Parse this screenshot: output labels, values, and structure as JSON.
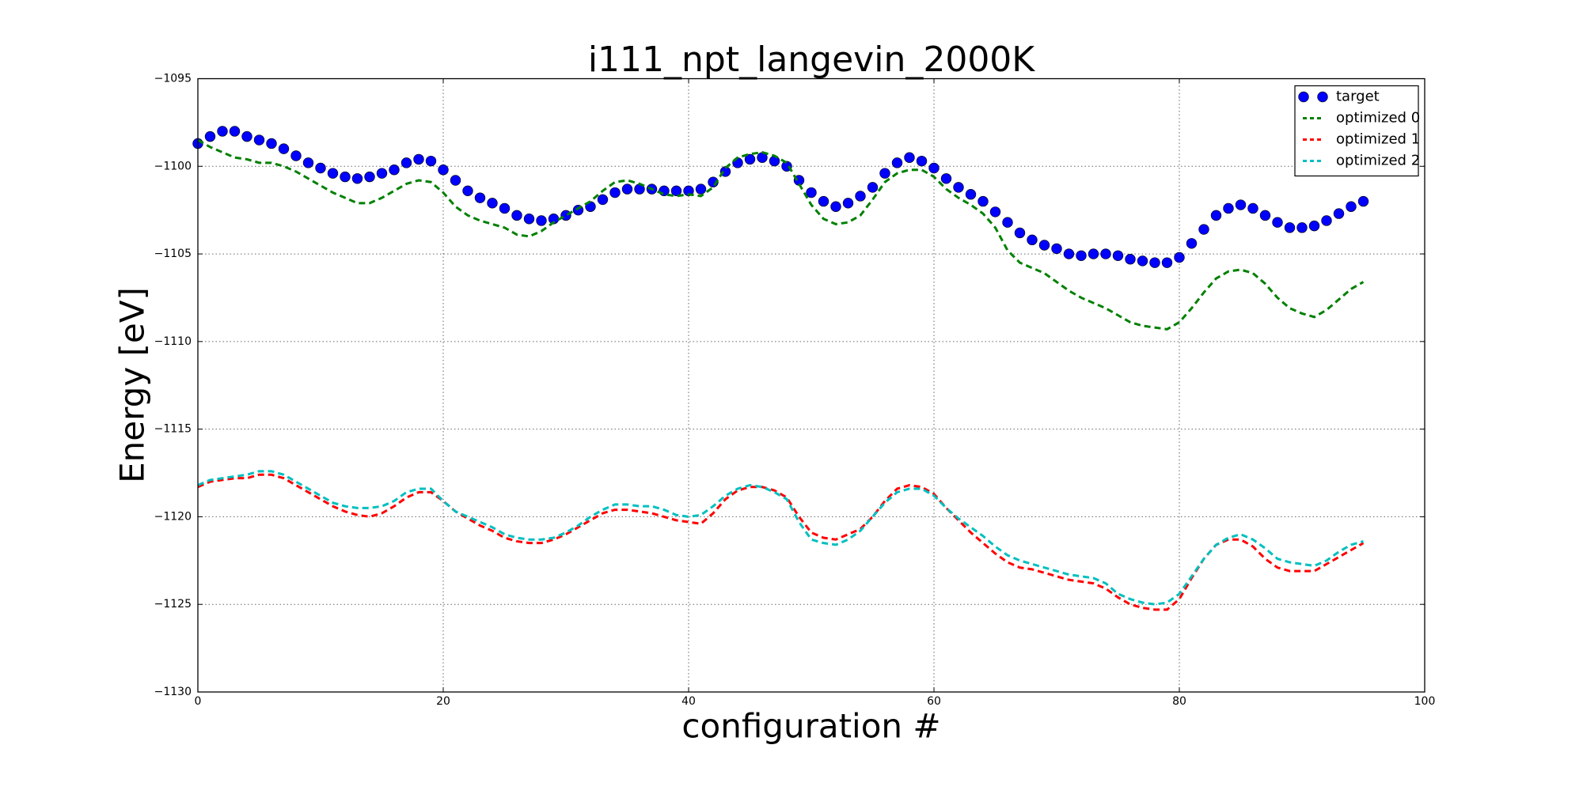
{
  "chart_data": {
    "type": "line",
    "title": "i111_npt_langevin_2000K",
    "xlabel": "configuration #",
    "ylabel": "Energy [eV]",
    "x": [
      0,
      1,
      2,
      3,
      4,
      5,
      6,
      7,
      8,
      9,
      10,
      11,
      12,
      13,
      14,
      15,
      16,
      17,
      18,
      19,
      20,
      21,
      22,
      23,
      24,
      25,
      26,
      27,
      28,
      29,
      30,
      31,
      32,
      33,
      34,
      35,
      36,
      37,
      38,
      39,
      40,
      41,
      42,
      43,
      44,
      45,
      46,
      47,
      48,
      49,
      50,
      51,
      52,
      53,
      54,
      55,
      56,
      57,
      58,
      59,
      60,
      61,
      62,
      63,
      64,
      65,
      66,
      67,
      68,
      69,
      70,
      71,
      72,
      73,
      74,
      75,
      76,
      77,
      78,
      79,
      80,
      81,
      82,
      83,
      84,
      85,
      86,
      87,
      88,
      89,
      90,
      91,
      92,
      93,
      94,
      95
    ],
    "xlim": [
      0,
      100
    ],
    "xticks": [
      0,
      20,
      40,
      60,
      80,
      100
    ],
    "ylim": [
      -1130,
      -1095
    ],
    "yticks": [
      {
        "value": -1095,
        "label": "−1095"
      },
      {
        "value": -1100,
        "label": "−1100"
      },
      {
        "value": -1105,
        "label": "−1105"
      },
      {
        "value": -1110,
        "label": "−1110"
      },
      {
        "value": -1115,
        "label": "−1115"
      },
      {
        "value": -1120,
        "label": "−1120"
      },
      {
        "value": -1125,
        "label": "−1125"
      },
      {
        "value": -1130,
        "label": "−1130"
      }
    ],
    "grid": true,
    "legend": "upper right",
    "series": [
      {
        "name": "target",
        "color": "#0000ff",
        "marker": "o",
        "linestyle": "none",
        "values": [
          -1098.7,
          -1098.3,
          -1098.0,
          -1098.0,
          -1098.3,
          -1098.5,
          -1098.7,
          -1099.0,
          -1099.4,
          -1099.8,
          -1100.1,
          -1100.4,
          -1100.6,
          -1100.7,
          -1100.6,
          -1100.4,
          -1100.2,
          -1099.8,
          -1099.6,
          -1099.7,
          -1100.2,
          -1100.8,
          -1101.4,
          -1101.8,
          -1102.1,
          -1102.4,
          -1102.8,
          -1103.0,
          -1103.1,
          -1103.0,
          -1102.8,
          -1102.5,
          -1102.3,
          -1101.9,
          -1101.5,
          -1101.3,
          -1101.3,
          -1101.3,
          -1101.4,
          -1101.4,
          -1101.4,
          -1101.3,
          -1100.9,
          -1100.3,
          -1099.8,
          -1099.6,
          -1099.5,
          -1099.7,
          -1100.0,
          -1100.8,
          -1101.5,
          -1102.0,
          -1102.3,
          -1102.1,
          -1101.7,
          -1101.2,
          -1100.4,
          -1099.8,
          -1099.5,
          -1099.7,
          -1100.1,
          -1100.7,
          -1101.2,
          -1101.6,
          -1102.0,
          -1102.6,
          -1103.2,
          -1103.8,
          -1104.2,
          -1104.5,
          -1104.7,
          -1105.0,
          -1105.1,
          -1105.0,
          -1105.0,
          -1105.1,
          -1105.3,
          -1105.4,
          -1105.5,
          -1105.5,
          -1105.2,
          -1104.4,
          -1103.6,
          -1102.8,
          -1102.4,
          -1102.2,
          -1102.4,
          -1102.8,
          -1103.2,
          -1103.5,
          -1103.5,
          -1103.4,
          -1103.1,
          -1102.7,
          -1102.3,
          -1102.0
        ]
      },
      {
        "name": "optimized 0",
        "color": "#008000",
        "marker": "none",
        "linestyle": "dashed",
        "values": [
          -1098.5,
          -1098.9,
          -1099.2,
          -1099.5,
          -1099.6,
          -1099.8,
          -1099.8,
          -1100.0,
          -1100.3,
          -1100.7,
          -1101.1,
          -1101.5,
          -1101.8,
          -1102.1,
          -1102.1,
          -1101.8,
          -1101.4,
          -1101.0,
          -1100.8,
          -1100.9,
          -1101.5,
          -1102.3,
          -1102.8,
          -1103.1,
          -1103.3,
          -1103.5,
          -1103.9,
          -1104.0,
          -1103.7,
          -1103.2,
          -1102.8,
          -1102.4,
          -1102.0,
          -1101.4,
          -1100.9,
          -1100.8,
          -1101.0,
          -1101.3,
          -1101.6,
          -1101.7,
          -1101.6,
          -1101.7,
          -1101.2,
          -1100.1,
          -1099.5,
          -1099.3,
          -1099.2,
          -1099.4,
          -1099.8,
          -1101.0,
          -1102.2,
          -1103.0,
          -1103.3,
          -1103.2,
          -1102.8,
          -1101.9,
          -1100.9,
          -1100.4,
          -1100.2,
          -1100.2,
          -1100.6,
          -1101.3,
          -1101.8,
          -1102.2,
          -1102.7,
          -1103.5,
          -1104.8,
          -1105.5,
          -1105.8,
          -1106.1,
          -1106.6,
          -1107.1,
          -1107.5,
          -1107.8,
          -1108.1,
          -1108.5,
          -1108.9,
          -1109.1,
          -1109.2,
          -1109.3,
          -1108.9,
          -1108.1,
          -1107.2,
          -1106.4,
          -1106.0,
          -1105.9,
          -1106.1,
          -1106.7,
          -1107.5,
          -1108.1,
          -1108.4,
          -1108.6,
          -1108.2,
          -1107.6,
          -1107.0,
          -1106.6
        ]
      },
      {
        "name": "optimized 1",
        "color": "#ff0000",
        "marker": "none",
        "linestyle": "dashed",
        "values": [
          -1118.3,
          -1118.0,
          -1117.9,
          -1117.8,
          -1117.8,
          -1117.6,
          -1117.6,
          -1117.8,
          -1118.2,
          -1118.6,
          -1119.0,
          -1119.4,
          -1119.7,
          -1119.9,
          -1120.0,
          -1119.8,
          -1119.4,
          -1118.9,
          -1118.6,
          -1118.6,
          -1119.1,
          -1119.7,
          -1120.1,
          -1120.5,
          -1120.8,
          -1121.2,
          -1121.4,
          -1121.5,
          -1121.5,
          -1121.3,
          -1121.0,
          -1120.6,
          -1120.2,
          -1119.8,
          -1119.6,
          -1119.6,
          -1119.7,
          -1119.8,
          -1120.0,
          -1120.2,
          -1120.3,
          -1120.4,
          -1119.8,
          -1119.0,
          -1118.5,
          -1118.3,
          -1118.3,
          -1118.5,
          -1118.9,
          -1120.0,
          -1120.9,
          -1121.2,
          -1121.3,
          -1121.0,
          -1120.7,
          -1120.0,
          -1119.1,
          -1118.4,
          -1118.2,
          -1118.3,
          -1118.7,
          -1119.5,
          -1120.2,
          -1120.9,
          -1121.5,
          -1122.1,
          -1122.6,
          -1122.9,
          -1123.0,
          -1123.2,
          -1123.4,
          -1123.6,
          -1123.7,
          -1123.8,
          -1124.1,
          -1124.6,
          -1125.0,
          -1125.2,
          -1125.3,
          -1125.3,
          -1124.7,
          -1123.5,
          -1122.4,
          -1121.6,
          -1121.3,
          -1121.3,
          -1121.7,
          -1122.4,
          -1122.9,
          -1123.1,
          -1123.1,
          -1123.1,
          -1122.7,
          -1122.3,
          -1121.9,
          -1121.5
        ]
      },
      {
        "name": "optimized 2",
        "color": "#00bfbf",
        "marker": "none",
        "linestyle": "dashed",
        "values": [
          -1118.2,
          -1117.9,
          -1117.8,
          -1117.7,
          -1117.6,
          -1117.4,
          -1117.4,
          -1117.6,
          -1118.0,
          -1118.4,
          -1118.8,
          -1119.2,
          -1119.4,
          -1119.5,
          -1119.5,
          -1119.4,
          -1119.1,
          -1118.6,
          -1118.4,
          -1118.4,
          -1119.1,
          -1119.7,
          -1120.0,
          -1120.3,
          -1120.6,
          -1121.0,
          -1121.2,
          -1121.3,
          -1121.3,
          -1121.2,
          -1120.9,
          -1120.5,
          -1120.0,
          -1119.6,
          -1119.3,
          -1119.3,
          -1119.4,
          -1119.4,
          -1119.6,
          -1119.9,
          -1120.0,
          -1119.9,
          -1119.4,
          -1118.8,
          -1118.4,
          -1118.2,
          -1118.3,
          -1118.6,
          -1119.0,
          -1120.3,
          -1121.3,
          -1121.5,
          -1121.6,
          -1121.3,
          -1120.8,
          -1120.0,
          -1119.2,
          -1118.6,
          -1118.4,
          -1118.4,
          -1118.8,
          -1119.5,
          -1120.1,
          -1120.6,
          -1121.1,
          -1121.7,
          -1122.2,
          -1122.5,
          -1122.7,
          -1122.9,
          -1123.1,
          -1123.3,
          -1123.4,
          -1123.5,
          -1123.8,
          -1124.4,
          -1124.7,
          -1124.9,
          -1125.0,
          -1124.9,
          -1124.4,
          -1123.4,
          -1122.4,
          -1121.6,
          -1121.2,
          -1121.0,
          -1121.3,
          -1121.8,
          -1122.4,
          -1122.6,
          -1122.7,
          -1122.8,
          -1122.5,
          -1122.0,
          -1121.6,
          -1121.4
        ]
      }
    ]
  }
}
